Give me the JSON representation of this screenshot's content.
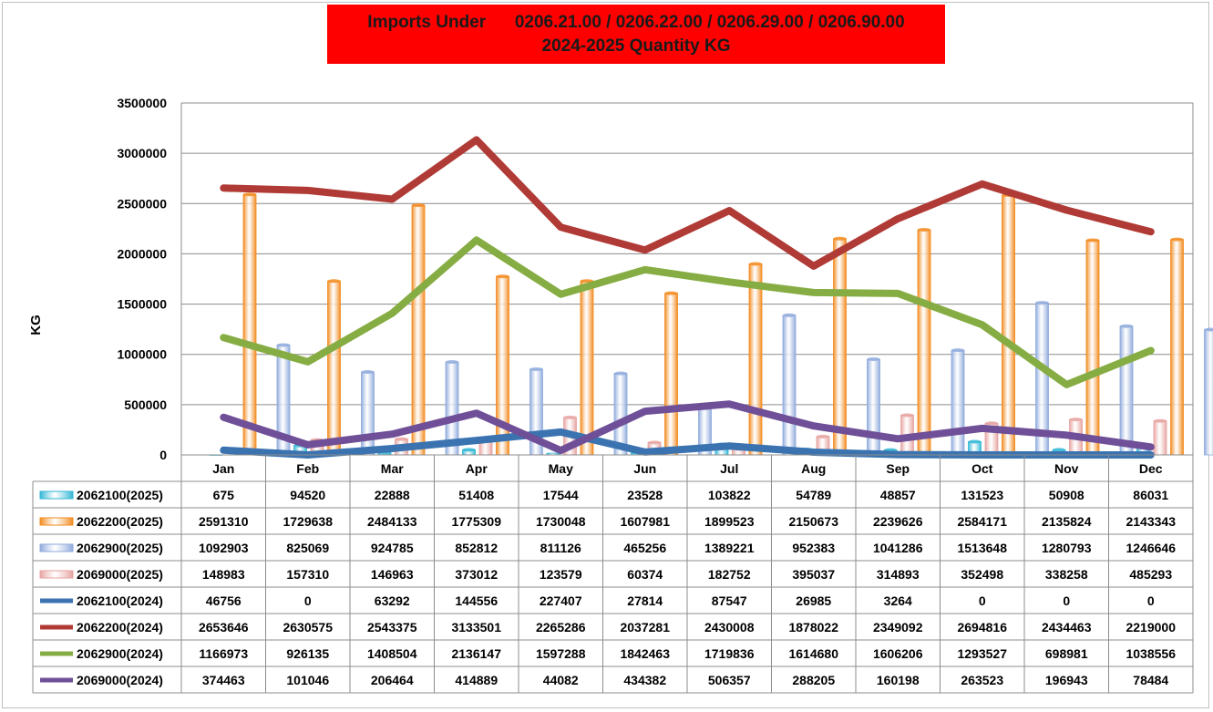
{
  "chart_data": {
    "type": "bar",
    "title_line1": "Imports Under      0206.21.00 / 0206.22.00 / 0206.29.00 / 0206.90.00",
    "title_line2": "2024-2025 Quantity KG",
    "ylabel": "KG",
    "ylim": [
      0,
      3500000
    ],
    "yticks": [
      "3500000",
      "3000000",
      "2500000",
      "2000000",
      "1500000",
      "1000000",
      "500000",
      "0"
    ],
    "ytick_values": [
      3500000,
      3000000,
      2500000,
      2000000,
      1500000,
      1000000,
      500000,
      0
    ],
    "categories": [
      "Jan",
      "Feb",
      "Mar",
      "Apr",
      "May",
      "Jun",
      "Jul",
      "Aug",
      "Sep",
      "Oct",
      "Nov",
      "Dec"
    ],
    "grid": true,
    "legend": "data table below chart",
    "series": [
      {
        "name": "2062100(2025)",
        "type": "bar",
        "color": "#31b6d4",
        "values": [
          675,
          94520,
          22888,
          51408,
          17544,
          23528,
          103822,
          54789,
          48857,
          131523,
          50908,
          86031
        ]
      },
      {
        "name": "2062200(2025)",
        "type": "bar",
        "color": "#f28a1e",
        "values": [
          2591310,
          1729638,
          2484133,
          1775309,
          1730048,
          1607981,
          1899523,
          2150673,
          2239626,
          2584171,
          2135824,
          2143343
        ]
      },
      {
        "name": "2062900(2025)",
        "type": "bar",
        "color": "#8faadc",
        "values": [
          1092903,
          825069,
          924785,
          852812,
          811126,
          465256,
          1389221,
          952383,
          1041286,
          1513648,
          1280793,
          1246646
        ]
      },
      {
        "name": "2069000(2025)",
        "type": "bar",
        "color": "#e6a3a0",
        "values": [
          148983,
          157310,
          146963,
          373012,
          123579,
          60374,
          182752,
          395037,
          314893,
          352498,
          338258,
          485293
        ]
      },
      {
        "name": "2062100(2024)",
        "type": "line",
        "color": "#3a73b0",
        "values": [
          46756,
          0,
          63292,
          144556,
          227407,
          27814,
          87547,
          26985,
          3264,
          0,
          0,
          0
        ]
      },
      {
        "name": "2062200(2024)",
        "type": "line",
        "color": "#b03a35",
        "values": [
          2653646,
          2630575,
          2543375,
          3133501,
          2265286,
          2037281,
          2430008,
          1878022,
          2349092,
          2694816,
          2434463,
          2219000
        ]
      },
      {
        "name": "2062900(2024)",
        "type": "line",
        "color": "#86ad43",
        "values": [
          1166973,
          926135,
          1408504,
          2136147,
          1597288,
          1842463,
          1719836,
          1614680,
          1606206,
          1293527,
          698981,
          1038556
        ]
      },
      {
        "name": "2069000(2024)",
        "type": "line",
        "color": "#6f4f97",
        "values": [
          374463,
          101046,
          206464,
          414889,
          44082,
          434382,
          506357,
          288205,
          160198,
          263523,
          196943,
          78484
        ]
      }
    ]
  }
}
